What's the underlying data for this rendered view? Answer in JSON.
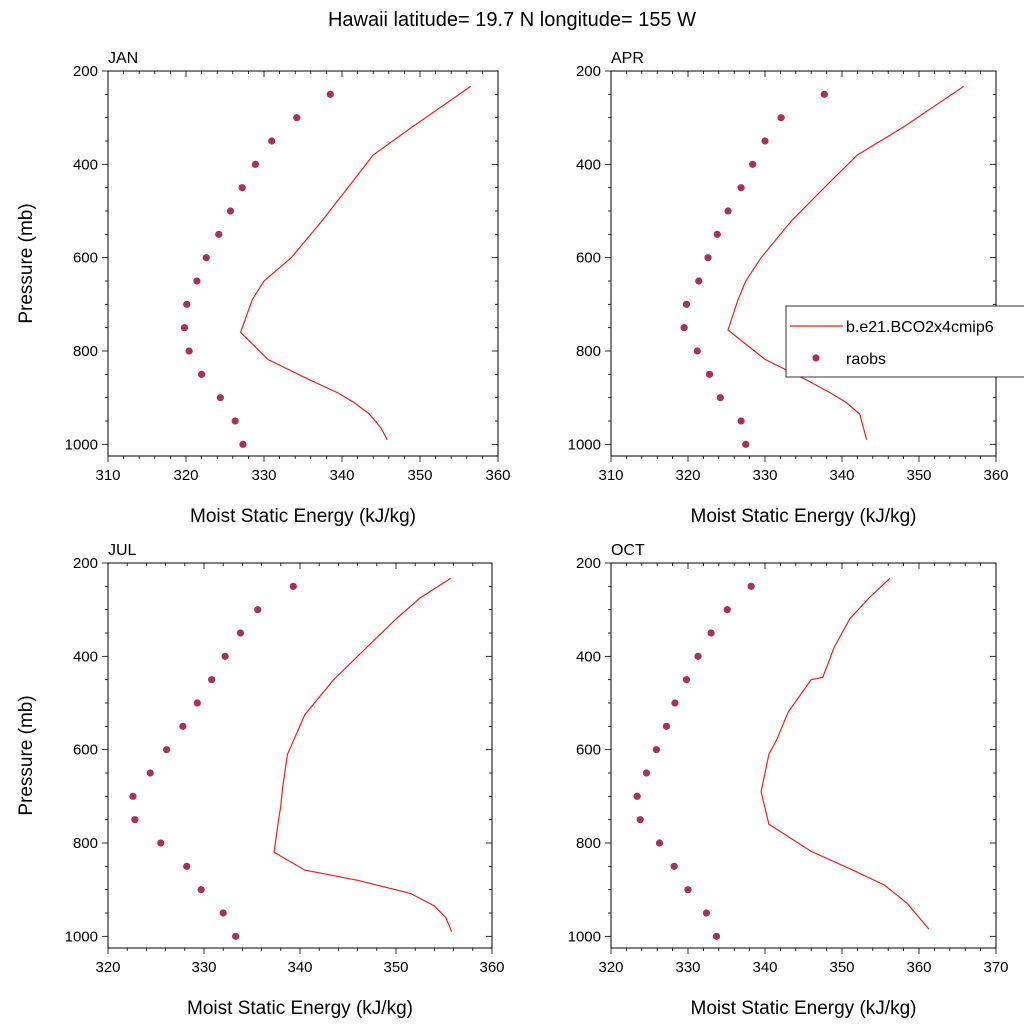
{
  "figure": {
    "title": "Hawaii  latitude= 19.7 N longitude= 155 W"
  },
  "legend": {
    "entries": [
      {
        "label": "b.e21.BCO2x4cmip6",
        "kind": "line",
        "color": "#e8231f"
      },
      {
        "label": "raobs",
        "kind": "marker",
        "color": "#a8305a"
      }
    ]
  },
  "chart_data": [
    {
      "type": "line",
      "label": "JAN",
      "xlabel": "Moist Static Energy (kJ/kg)",
      "ylabel": "Pressure (mb)",
      "xlim": [
        310,
        360
      ],
      "ylim": [
        200,
        1025
      ],
      "y_inverted": true,
      "xticks": [
        310,
        320,
        330,
        340,
        350,
        360
      ],
      "yticks": [
        200,
        400,
        600,
        800,
        1000
      ],
      "series": [
        {
          "name": "b.e21.BCO2x4cmip6",
          "style": "line",
          "x": [
            356.5,
            349,
            344,
            341,
            337.5,
            333.5,
            330,
            328.5,
            327,
            330.5,
            336,
            339.5,
            341.5,
            343.5,
            345,
            345.8
          ],
          "y": [
            233,
            320,
            380,
            445,
            520,
            600,
            650,
            690,
            760,
            818,
            863,
            890,
            910,
            935,
            965,
            990
          ]
        },
        {
          "name": "raobs",
          "style": "marker",
          "x": [
            338.5,
            334.2,
            331.0,
            328.9,
            327.2,
            325.7,
            324.2,
            322.6,
            321.4,
            320.1,
            319.8,
            320.4,
            322.0,
            324.4,
            326.3,
            327.3
          ],
          "y": [
            250,
            300,
            350,
            400,
            450,
            500,
            550,
            600,
            650,
            700,
            750,
            800,
            850,
            900,
            950,
            1000
          ]
        }
      ]
    },
    {
      "type": "line",
      "label": "APR",
      "xlabel": "Moist Static Energy (kJ/kg)",
      "ylabel": "",
      "xlim": [
        310,
        360
      ],
      "ylim": [
        200,
        1025
      ],
      "y_inverted": true,
      "xticks": [
        310,
        320,
        330,
        340,
        350,
        360
      ],
      "yticks": [
        200,
        400,
        600,
        800,
        1000
      ],
      "series": [
        {
          "name": "b.e21.BCO2x4cmip6",
          "style": "line",
          "x": [
            355.8,
            348,
            342,
            338,
            333.5,
            329.5,
            327.5,
            326.5,
            325.2,
            330,
            335.5,
            338.5,
            340.5,
            342.3,
            343.2
          ],
          "y": [
            233,
            320,
            380,
            445,
            520,
            600,
            650,
            690,
            755,
            818,
            863,
            890,
            910,
            935,
            990
          ]
        },
        {
          "name": "raobs",
          "style": "marker",
          "x": [
            337.7,
            332.1,
            330.0,
            328.4,
            326.9,
            325.2,
            323.8,
            322.6,
            321.4,
            319.8,
            319.5,
            321.2,
            322.8,
            324.2,
            326.9,
            327.5
          ],
          "y": [
            250,
            300,
            350,
            400,
            450,
            500,
            550,
            600,
            650,
            700,
            750,
            800,
            850,
            900,
            950,
            1000
          ]
        }
      ]
    },
    {
      "type": "line",
      "label": "JUL",
      "xlabel": "Moist Static Energy (kJ/kg)",
      "ylabel": "Pressure (mb)",
      "xlim": [
        320,
        360
      ],
      "ylim": [
        200,
        1025
      ],
      "y_inverted": true,
      "xticks": [
        320,
        330,
        340,
        350,
        360
      ],
      "yticks": [
        200,
        400,
        600,
        800,
        1000
      ],
      "series": [
        {
          "name": "b.e21.BCO2x4cmip6",
          "style": "line",
          "x": [
            355.7,
            352.5,
            350,
            347,
            343.5,
            340.5,
            338.7,
            338.2,
            338,
            337.7,
            337.3,
            340.5,
            346,
            351.5,
            354,
            355.2,
            355.8
          ],
          "y": [
            233,
            275,
            320,
            380,
            450,
            525,
            610,
            680,
            720,
            760,
            820,
            858,
            880,
            908,
            935,
            960,
            990
          ]
        },
        {
          "name": "raobs",
          "style": "marker",
          "x": [
            339.3,
            335.6,
            333.8,
            332.2,
            330.8,
            329.3,
            327.8,
            326.1,
            324.4,
            322.6,
            322.8,
            325.5,
            328.2,
            329.7,
            332.0,
            333.3
          ],
          "y": [
            250,
            300,
            350,
            400,
            450,
            500,
            550,
            600,
            650,
            700,
            750,
            800,
            850,
            900,
            950,
            1000
          ]
        }
      ]
    },
    {
      "type": "line",
      "label": "OCT",
      "xlabel": "Moist Static Energy (kJ/kg)",
      "ylabel": "",
      "xlim": [
        320,
        370
      ],
      "ylim": [
        200,
        1025
      ],
      "y_inverted": true,
      "xticks": [
        320,
        330,
        340,
        350,
        360,
        370
      ],
      "yticks": [
        200,
        400,
        600,
        800,
        1000
      ],
      "series": [
        {
          "name": "b.e21.BCO2x4cmip6",
          "style": "line",
          "x": [
            356.2,
            353.5,
            351,
            349,
            347.5,
            346,
            343,
            341.5,
            340.5,
            339.5,
            340.5,
            346,
            351,
            355.5,
            358.5,
            361.3
          ],
          "y": [
            233,
            275,
            320,
            380,
            445,
            450,
            520,
            580,
            610,
            690,
            760,
            818,
            855,
            890,
            930,
            985
          ]
        },
        {
          "name": "raobs",
          "style": "marker",
          "x": [
            338.2,
            335.1,
            333.0,
            331.3,
            329.8,
            328.3,
            327.2,
            325.9,
            324.6,
            323.4,
            323.8,
            326.3,
            328.2,
            330.0,
            332.4,
            333.7
          ],
          "y": [
            250,
            300,
            350,
            400,
            450,
            500,
            550,
            600,
            650,
            700,
            750,
            800,
            850,
            900,
            950,
            1000
          ]
        }
      ]
    }
  ]
}
